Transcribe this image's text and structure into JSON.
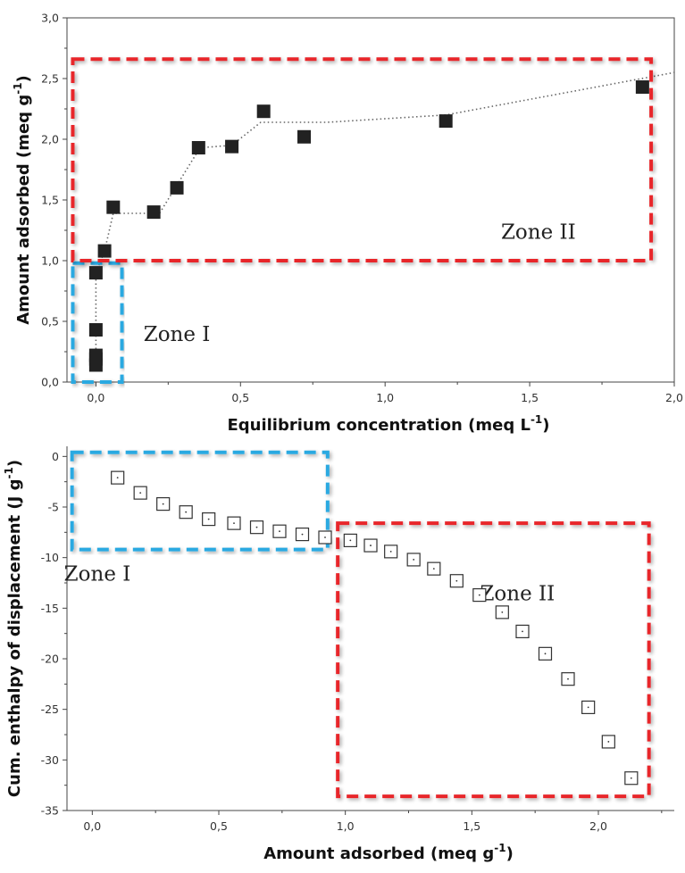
{
  "chart_data": [
    {
      "type": "scatter",
      "xlabel": "Equilibrium concentration (meq L",
      "xlabel_sup": "-1",
      "xlabel_end": ")",
      "ylabel": "Amount adsorbed (meq g",
      "ylabel_sup": "-1",
      "ylabel_end": ")",
      "xlim": [
        -0.1,
        2.0
      ],
      "ylim": [
        0.0,
        3.0
      ],
      "xticks": [
        0.0,
        0.5,
        1.0,
        1.5,
        2.0
      ],
      "xtick_labels": [
        "0,0",
        "0,5",
        "1,0",
        "1,5",
        "2,0"
      ],
      "yticks": [
        0.0,
        0.5,
        1.0,
        1.5,
        2.0,
        2.5,
        3.0
      ],
      "ytick_labels": [
        "0,0",
        "0,5",
        "1,0",
        "1,5",
        "2,0",
        "2,5",
        "3,0"
      ],
      "marker": "filled-square",
      "marker_color": "#222222",
      "points": [
        {
          "x": 0.0,
          "y": 0.14
        },
        {
          "x": 0.0,
          "y": 0.19
        },
        {
          "x": 0.0,
          "y": 0.22
        },
        {
          "x": 0.0,
          "y": 0.43
        },
        {
          "x": 0.0,
          "y": 0.9
        },
        {
          "x": 0.03,
          "y": 1.08
        },
        {
          "x": 0.06,
          "y": 1.44
        },
        {
          "x": 0.2,
          "y": 1.4
        },
        {
          "x": 0.28,
          "y": 1.6
        },
        {
          "x": 0.355,
          "y": 1.93
        },
        {
          "x": 0.47,
          "y": 1.94
        },
        {
          "x": 0.58,
          "y": 2.23
        },
        {
          "x": 0.72,
          "y": 2.02
        },
        {
          "x": 1.21,
          "y": 2.15
        },
        {
          "x": 1.89,
          "y": 2.43
        }
      ],
      "fit_line": {
        "style": "dotted",
        "color": "#666666",
        "points": [
          {
            "x": 0.0,
            "y": 0.14
          },
          {
            "x": 0.0,
            "y": 0.9
          },
          {
            "x": 0.03,
            "y": 1.08
          },
          {
            "x": 0.06,
            "y": 1.39
          },
          {
            "x": 0.22,
            "y": 1.39
          },
          {
            "x": 0.36,
            "y": 1.93
          },
          {
            "x": 0.47,
            "y": 1.95
          },
          {
            "x": 0.57,
            "y": 2.14
          },
          {
            "x": 0.8,
            "y": 2.14
          },
          {
            "x": 1.21,
            "y": 2.2
          },
          {
            "x": 2.0,
            "y": 2.55
          }
        ]
      },
      "zones": [
        {
          "label": "Zone I",
          "color": "#29a9e1",
          "x0": -0.08,
          "x1": 0.09,
          "y0": -0.0,
          "y1": 0.98
        },
        {
          "label": "Zone II",
          "color": "#e8262b",
          "x0": -0.08,
          "x1": 1.92,
          "y0": 1.0,
          "y1": 2.66
        }
      ],
      "zone_label_pos": [
        {
          "x": 0.28,
          "y": 0.34
        },
        {
          "x": 1.53,
          "y": 1.18
        }
      ]
    },
    {
      "type": "scatter",
      "xlabel": "Amount adsorbed (meq g",
      "xlabel_sup": "-1",
      "xlabel_end": ")",
      "ylabel": "Cum. enthalpy of displacement (J g",
      "ylabel_sup": "-1",
      "ylabel_end": ")",
      "xlim": [
        -0.1,
        2.3
      ],
      "ylim": [
        -35,
        1
      ],
      "xticks": [
        0.0,
        0.5,
        1.0,
        1.5,
        2.0
      ],
      "xtick_labels": [
        "0,0",
        "0,5",
        "1,0",
        "1,5",
        "2,0"
      ],
      "yticks": [
        0,
        -5,
        -10,
        -15,
        -20,
        -25,
        -30,
        -35
      ],
      "ytick_labels": [
        "0",
        "-5",
        "-10",
        "-15",
        "-20",
        "-25",
        "-30",
        "-35"
      ],
      "marker": "hollow-square-dot",
      "marker_color": "#333333",
      "points": [
        {
          "x": 0.1,
          "y": -2.1
        },
        {
          "x": 0.19,
          "y": -3.6
        },
        {
          "x": 0.28,
          "y": -4.7
        },
        {
          "x": 0.37,
          "y": -5.5
        },
        {
          "x": 0.46,
          "y": -6.2
        },
        {
          "x": 0.56,
          "y": -6.6
        },
        {
          "x": 0.65,
          "y": -7.0
        },
        {
          "x": 0.74,
          "y": -7.4
        },
        {
          "x": 0.83,
          "y": -7.7
        },
        {
          "x": 0.92,
          "y": -8.0
        },
        {
          "x": 1.02,
          "y": -8.3
        },
        {
          "x": 1.1,
          "y": -8.8
        },
        {
          "x": 1.18,
          "y": -9.4
        },
        {
          "x": 1.27,
          "y": -10.2
        },
        {
          "x": 1.35,
          "y": -11.1
        },
        {
          "x": 1.44,
          "y": -12.3
        },
        {
          "x": 1.53,
          "y": -13.7
        },
        {
          "x": 1.62,
          "y": -15.4
        },
        {
          "x": 1.7,
          "y": -17.3
        },
        {
          "x": 1.79,
          "y": -19.5
        },
        {
          "x": 1.88,
          "y": -22.0
        },
        {
          "x": 1.96,
          "y": -24.8
        },
        {
          "x": 2.04,
          "y": -28.2
        },
        {
          "x": 2.13,
          "y": -31.8
        }
      ],
      "zones": [
        {
          "label": "Zone I",
          "color": "#29a9e1",
          "x0": -0.08,
          "x1": 0.93,
          "y0": -9.2,
          "y1": 0.4
        },
        {
          "label": "Zone II",
          "color": "#e8262b",
          "x0": 0.97,
          "x1": 2.2,
          "y0": -33.6,
          "y1": -6.6
        }
      ],
      "zone_label_pos": [
        {
          "x": 0.02,
          "y": -12.3
        },
        {
          "x": 1.68,
          "y": -14.2
        }
      ]
    }
  ]
}
